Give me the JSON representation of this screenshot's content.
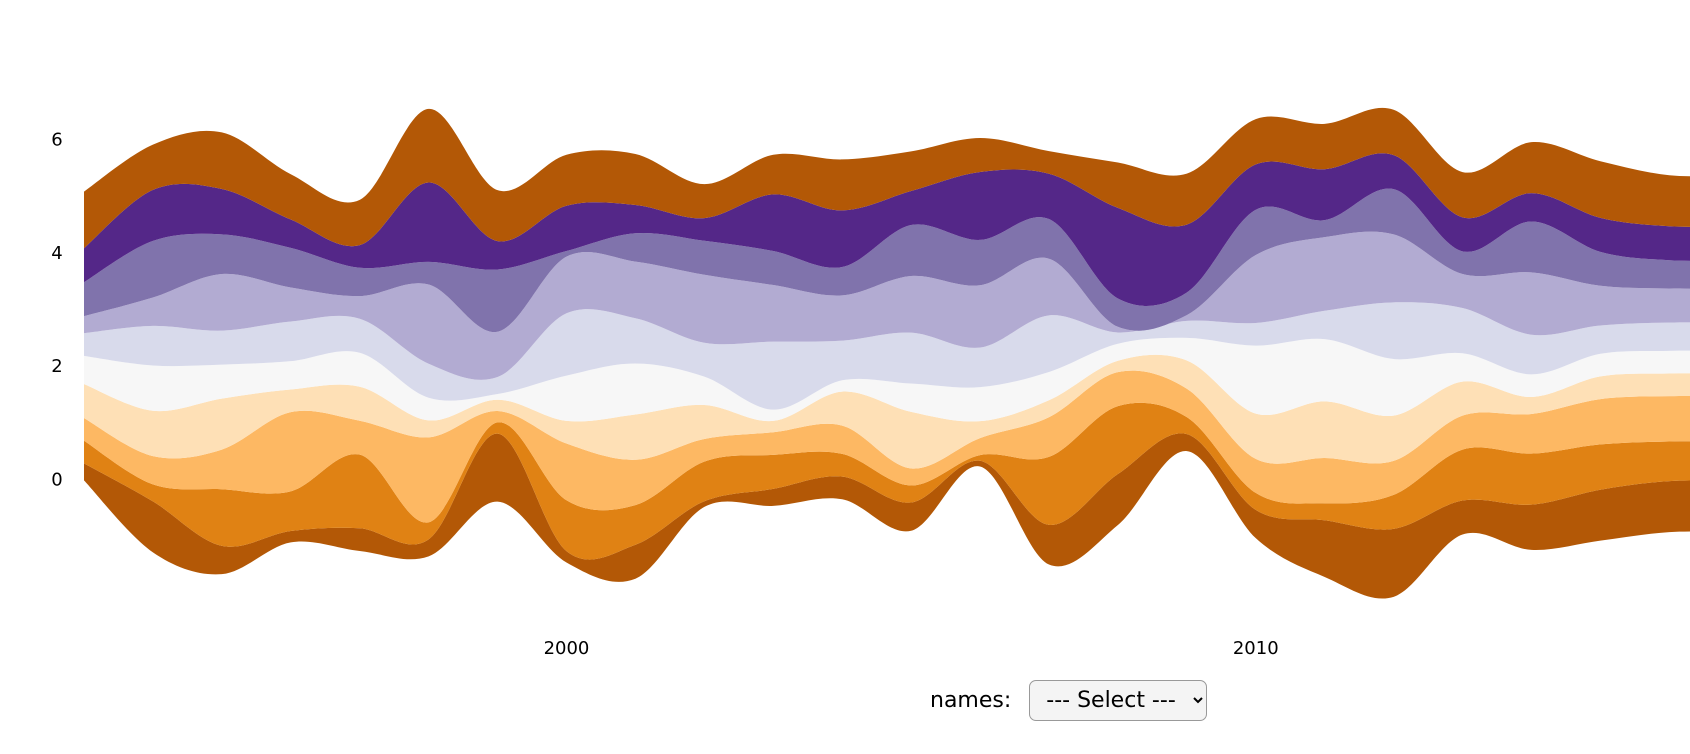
{
  "chart_data": {
    "type": "streamgraph",
    "x": [
      1993,
      1994,
      1995,
      1996,
      1997,
      1998,
      1999,
      2000,
      2001,
      2002,
      2003,
      2004,
      2005,
      2006,
      2007,
      2008,
      2009,
      2010,
      2011,
      2012,
      2013,
      2014,
      2015,
      2016,
      2017
    ],
    "xlim": [
      1993,
      2016.3
    ],
    "xticks": [
      2000,
      2010
    ],
    "ylim": [
      -2.2,
      7.6
    ],
    "yticks": [
      0,
      2,
      4,
      6
    ],
    "series": [
      {
        "color": "#b35806",
        "values": [
          0.3,
          0.9,
          0.5,
          0.2,
          0.4,
          0.3,
          1.2,
          0.2,
          0.6,
          0.1,
          0.3,
          0.4,
          0.5,
          0.1,
          0.7,
          0.9,
          0.3,
          0.5,
          1.0,
          1.2,
          0.6,
          0.8,
          0.9,
          0.9,
          0.9
        ]
      },
      {
        "color": "#e08214",
        "values": [
          0.4,
          0.3,
          1.0,
          0.7,
          1.3,
          0.3,
          0.2,
          0.9,
          0.7,
          0.7,
          0.6,
          0.4,
          0.3,
          0.1,
          1.2,
          1.2,
          0.3,
          0.3,
          0.3,
          0.6,
          0.9,
          0.9,
          0.8,
          0.7,
          0.7
        ]
      },
      {
        "color": "#fdb863",
        "values": [
          0.4,
          0.5,
          0.7,
          1.4,
          0.6,
          1.5,
          0.2,
          1.0,
          0.8,
          0.4,
          0.4,
          0.5,
          0.3,
          0.3,
          0.7,
          0.6,
          0.5,
          0.6,
          0.8,
          0.6,
          0.6,
          0.7,
          0.8,
          0.8,
          0.8
        ]
      },
      {
        "color": "#fee0b6",
        "values": [
          0.6,
          0.8,
          0.9,
          0.4,
          0.6,
          0.3,
          0.2,
          0.4,
          0.8,
          0.6,
          0.2,
          0.6,
          1.0,
          0.3,
          0.3,
          0.2,
          0.5,
          0.8,
          1.0,
          0.8,
          0.6,
          0.3,
          0.4,
          0.4,
          0.4
        ]
      },
      {
        "color": "#f7f7f7",
        "values": [
          0.5,
          0.8,
          0.6,
          0.5,
          0.6,
          0.4,
          0.1,
          0.8,
          0.9,
          0.5,
          0.2,
          0.2,
          0.5,
          0.6,
          0.5,
          0.3,
          0.4,
          1.2,
          1.1,
          1.0,
          0.5,
          0.4,
          0.4,
          0.4,
          0.4
        ]
      },
      {
        "color": "#d8daeb",
        "values": [
          0.4,
          0.7,
          0.6,
          0.7,
          0.6,
          0.6,
          0.3,
          1.1,
          0.8,
          0.6,
          1.2,
          0.7,
          0.9,
          0.7,
          1.0,
          0.2,
          0.3,
          0.4,
          0.5,
          1.0,
          0.8,
          0.7,
          0.5,
          0.5,
          0.5
        ]
      },
      {
        "color": "#b2abd2",
        "values": [
          0.3,
          0.5,
          1.0,
          0.6,
          0.4,
          1.4,
          0.8,
          1.0,
          1.0,
          1.2,
          1.0,
          0.8,
          1.0,
          1.1,
          1.0,
          0.1,
          0.1,
          1.2,
          1.3,
          1.2,
          0.6,
          1.1,
          0.7,
          0.6,
          0.6
        ]
      },
      {
        "color": "#8073ac",
        "values": [
          0.6,
          1.0,
          0.7,
          0.7,
          0.5,
          0.4,
          1.1,
          0.1,
          0.5,
          0.6,
          0.6,
          0.5,
          0.9,
          0.8,
          0.7,
          0.5,
          0.4,
          0.8,
          0.3,
          0.8,
          0.4,
          0.9,
          0.6,
          0.5,
          0.5
        ]
      },
      {
        "color": "#542788",
        "values": [
          0.6,
          0.9,
          0.8,
          0.5,
          0.4,
          1.4,
          0.5,
          0.8,
          0.5,
          0.4,
          1.0,
          1.0,
          0.6,
          1.2,
          0.8,
          1.6,
          1.2,
          0.8,
          0.9,
          0.6,
          0.6,
          0.5,
          0.6,
          0.6,
          0.6
        ]
      },
      {
        "color": "#b35806",
        "values": [
          1.0,
          0.8,
          1.0,
          0.8,
          0.8,
          1.3,
          0.9,
          0.9,
          0.9,
          0.6,
          0.7,
          0.9,
          0.7,
          0.6,
          0.4,
          0.8,
          0.9,
          0.8,
          0.8,
          0.8,
          0.8,
          0.9,
          1.0,
          0.9,
          0.9
        ]
      }
    ]
  },
  "controls": {
    "label": "names:",
    "select": "--- Select ---"
  }
}
